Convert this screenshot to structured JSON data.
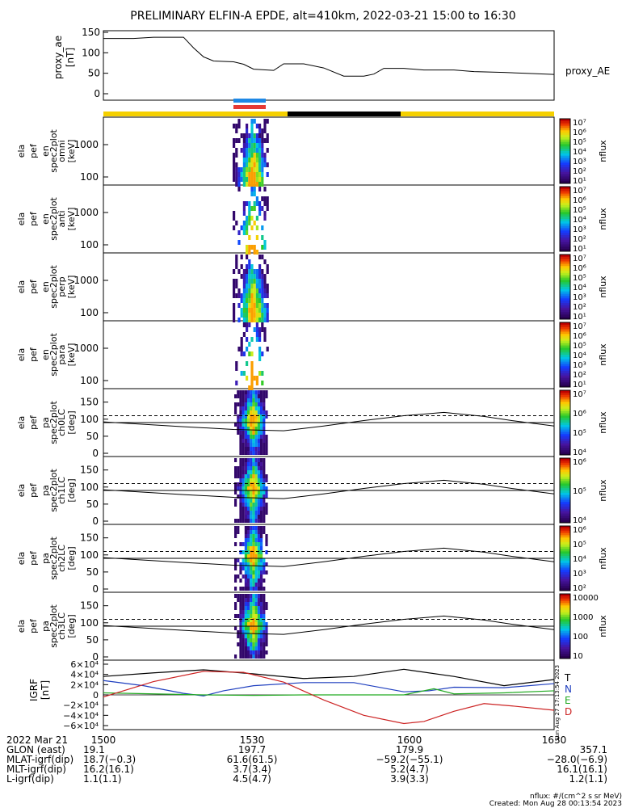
{
  "title": "PRELIMINARY ELFIN-A EPDE, alt=410km, 2022-03-21 15:00 to 16:30",
  "colors": {
    "yellow": "#f5d000",
    "black": "#000000",
    "blue": "#1e88e5",
    "red": "#e53935",
    "T": "#000000",
    "N": "#1f3fbf",
    "E": "#22aa22",
    "D": "#cc2222"
  },
  "chart_data": [
    {
      "type": "line",
      "panel": "proxy_ae",
      "ylabel_lines": [
        "proxy_ae",
        "[nT]"
      ],
      "ylim": [
        0,
        150
      ],
      "yticks": [
        "150",
        "100",
        "50",
        "0"
      ],
      "legend": "proxy_AE",
      "x": [
        0,
        6,
        10,
        14,
        16,
        18,
        20,
        22,
        26,
        28,
        30,
        34,
        36,
        38,
        40,
        44,
        48,
        52,
        54,
        56,
        60,
        64,
        70,
        74,
        80,
        84,
        90
      ],
      "values": [
        135,
        135,
        138,
        138,
        138,
        112,
        90,
        80,
        78,
        72,
        60,
        57,
        73,
        73,
        73,
        63,
        43,
        43,
        48,
        62,
        62,
        58,
        58,
        54,
        52,
        50,
        47
      ]
    },
    {
      "type": "heatmap",
      "panel": "spec-omni",
      "ylabel_lines": [
        "ela",
        "pef",
        "en",
        "spec2plot",
        "omni",
        "[keV]"
      ],
      "yticks": [
        "1000",
        "100"
      ],
      "cbar_ticks": [
        "10⁷",
        "10⁶",
        "10⁵",
        "10⁴",
        "10³",
        "10²",
        "10¹"
      ],
      "cbar_label": "nflux"
    },
    {
      "type": "heatmap",
      "panel": "spec-anti",
      "ylabel_lines": [
        "ela",
        "pef",
        "en",
        "spec2plot",
        "anti",
        "[keV]"
      ],
      "yticks": [
        "1000",
        "100"
      ],
      "cbar_ticks": [
        "10⁷",
        "10⁶",
        "10⁵",
        "10⁴",
        "10³",
        "10²",
        "10¹"
      ],
      "cbar_label": "nflux"
    },
    {
      "type": "heatmap",
      "panel": "spec-perp",
      "ylabel_lines": [
        "ela",
        "pef",
        "en",
        "spec2plot",
        "perp",
        "[keV]"
      ],
      "yticks": [
        "1000",
        "100"
      ],
      "cbar_ticks": [
        "10⁷",
        "10⁶",
        "10⁵",
        "10⁴",
        "10³",
        "10²",
        "10¹"
      ],
      "cbar_label": "nflux"
    },
    {
      "type": "heatmap",
      "panel": "spec-para",
      "ylabel_lines": [
        "ela",
        "pef",
        "en",
        "spec2plot",
        "para",
        "[keV]"
      ],
      "yticks": [
        "1000",
        "100"
      ],
      "cbar_ticks": [
        "10⁷",
        "10⁶",
        "10⁵",
        "10⁴",
        "10³",
        "10²",
        "10¹"
      ],
      "cbar_label": "nflux"
    },
    {
      "type": "heatmap",
      "panel": "pa-ch0",
      "ylabel_lines": [
        "ela",
        "pef",
        "pa",
        "spec2plot",
        "ch0LC",
        "[deg]"
      ],
      "yticks": [
        "150",
        "100",
        "50",
        "0"
      ],
      "cbar_ticks": [
        "10⁷",
        "10⁶",
        "10⁵",
        "10⁴"
      ],
      "cbar_label": "nflux"
    },
    {
      "type": "heatmap",
      "panel": "pa-ch1",
      "ylabel_lines": [
        "ela",
        "pef",
        "pa",
        "spec2plot",
        "ch1LC",
        "[deg]"
      ],
      "yticks": [
        "150",
        "100",
        "50",
        "0"
      ],
      "cbar_ticks": [
        "10⁶",
        "10⁵",
        "10⁴"
      ],
      "cbar_label": "nflux"
    },
    {
      "type": "heatmap",
      "panel": "pa-ch2",
      "ylabel_lines": [
        "ela",
        "pef",
        "pa",
        "spec2plot",
        "ch2LC",
        "[deg]"
      ],
      "yticks": [
        "150",
        "100",
        "50",
        "0"
      ],
      "cbar_ticks": [
        "10⁶",
        "10⁵",
        "10⁴",
        "10³",
        "10²"
      ],
      "cbar_label": "nflux"
    },
    {
      "type": "heatmap",
      "panel": "pa-ch3",
      "ylabel_lines": [
        "ela",
        "pef",
        "pa",
        "spec2plot",
        "ch3LC",
        "[deg]"
      ],
      "yticks": [
        "150",
        "100",
        "50",
        "0"
      ],
      "cbar_ticks": [
        "10000",
        "1000",
        "100",
        "10"
      ],
      "cbar_label": "nflux"
    },
    {
      "type": "line",
      "panel": "igrf",
      "ylabel_lines": [
        "IGRF",
        "[nT]"
      ],
      "ylim": [
        -60000,
        60000
      ],
      "yticks": [
        "6×10⁴",
        "4×10⁴",
        "2×10⁴",
        "0",
        "−2×10⁴",
        "−4×10⁴",
        "−6×10⁴"
      ],
      "legend": [
        "T",
        "N",
        "E",
        "D"
      ],
      "series": [
        {
          "name": "T",
          "x": [
            0,
            10,
            20,
            30,
            40,
            50,
            60,
            70,
            80,
            90
          ],
          "values": [
            36000,
            43000,
            49000,
            41000,
            32000,
            36000,
            50000,
            36000,
            18000,
            30000
          ]
        },
        {
          "name": "N",
          "x": [
            0,
            8,
            16,
            20,
            24,
            30,
            40,
            50,
            60,
            65,
            70,
            80,
            90
          ],
          "values": [
            28000,
            18000,
            3000,
            -2000,
            8000,
            18000,
            24000,
            24000,
            6000,
            8000,
            15000,
            14000,
            22000
          ]
        },
        {
          "name": "E",
          "x": [
            0,
            10,
            20,
            30,
            40,
            50,
            60,
            66,
            70,
            80,
            90
          ],
          "values": [
            4000,
            2000,
            0,
            -1000,
            0,
            0,
            0,
            12000,
            2000,
            4000,
            8000
          ]
        },
        {
          "name": "D",
          "x": [
            0,
            10,
            20,
            28,
            36,
            44,
            52,
            60,
            64,
            70,
            76,
            82,
            90
          ],
          "values": [
            -4000,
            26000,
            46000,
            44000,
            25000,
            -10000,
            -40000,
            -56000,
            -52000,
            -32000,
            -17000,
            -22000,
            -30000
          ]
        }
      ]
    }
  ],
  "ephemeris": {
    "row_labels": [
      "2022 Mar 21",
      "GLON (east)",
      "MLAT-igrf(dip)",
      "MLT-igrf(dip)",
      "L-igrf(dip)"
    ],
    "columns": [
      {
        "time": "1500",
        "vals": [
          "19.1",
          "18.7(−0.3)",
          "16.2(16.1)",
          "1.1(1.1)"
        ]
      },
      {
        "time": "1530",
        "vals": [
          "197.7",
          "61.6(61.5)",
          "3.7(3.4)",
          "4.5(4.7)"
        ]
      },
      {
        "time": "1600",
        "vals": [
          "179.9",
          "−59.2(−55.1)",
          "5.2(4.7)",
          "3.9(3.3)"
        ]
      },
      {
        "time": "1630",
        "vals": [
          "357.1",
          "−28.0(−6.9)",
          "16.1(16.1)",
          "1.2(1.1)"
        ]
      }
    ]
  },
  "footer": {
    "units": "nflux: #/(cm^2 s sr MeV)",
    "created": "Created: Mon Aug 28 00:13:54 2023",
    "side_stamp": "Sun Aug 27 17:13:54 2023"
  }
}
